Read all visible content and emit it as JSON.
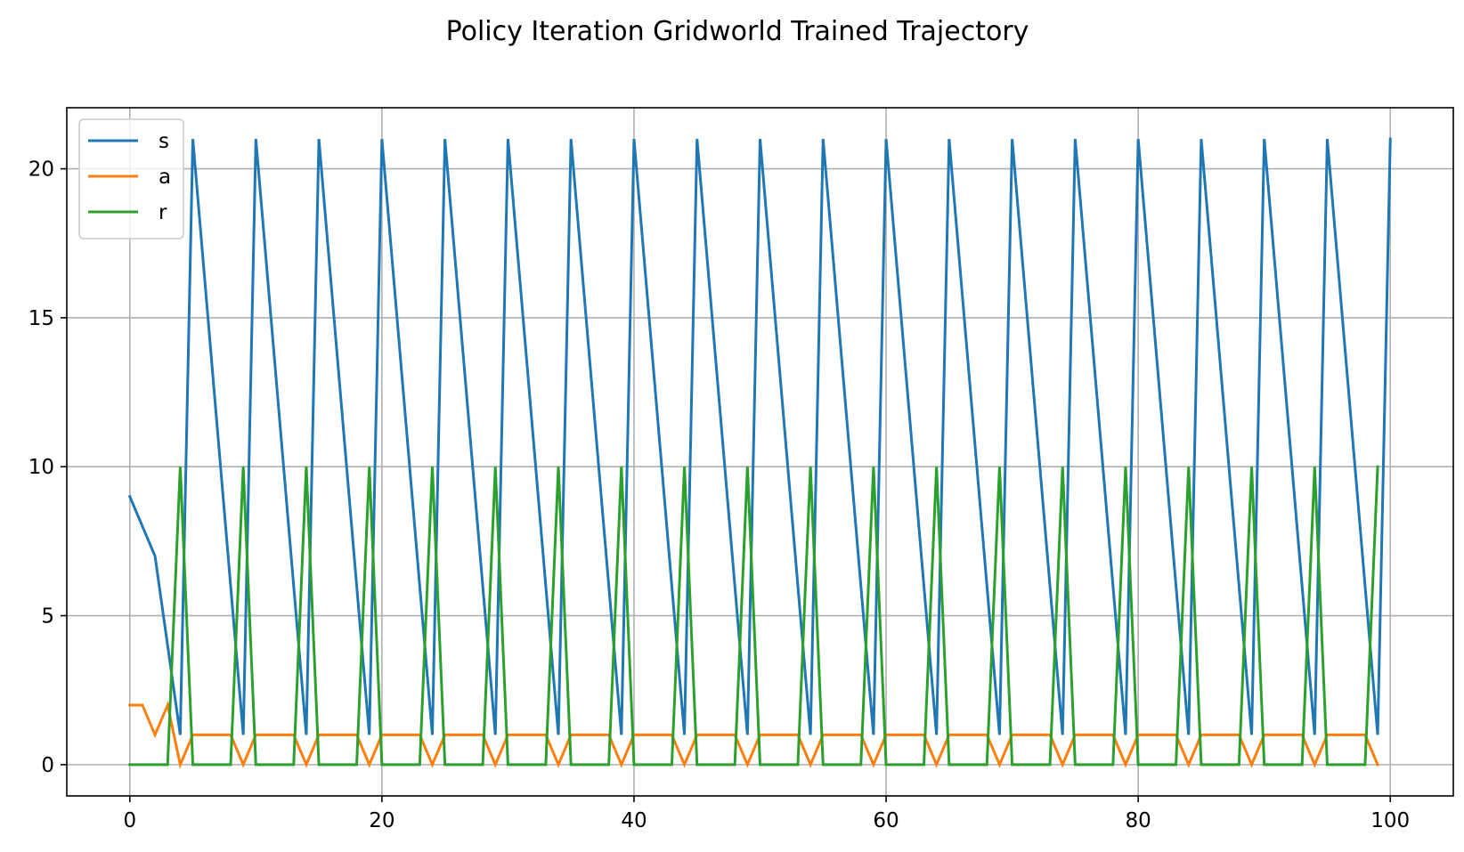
{
  "chart_data": {
    "type": "line",
    "title": "Policy Iteration Gridworld Trained Trajectory",
    "xlabel": "",
    "ylabel": "",
    "xlim": [
      -5,
      105
    ],
    "ylim": [
      -1.05,
      22.05
    ],
    "xticks": [
      0,
      20,
      40,
      60,
      80,
      100
    ],
    "yticks": [
      0,
      5,
      10,
      15,
      20
    ],
    "grid": true,
    "legend_position": "upper-left",
    "series": [
      {
        "name": "s",
        "color": "#1f77b4",
        "x": [
          0,
          2,
          4,
          5,
          9,
          10,
          14,
          15,
          19,
          20,
          24,
          25,
          29,
          30,
          34,
          35,
          39,
          40,
          44,
          45,
          49,
          50,
          54,
          55,
          59,
          60,
          64,
          65,
          69,
          70,
          74,
          75,
          79,
          80,
          84,
          85,
          89,
          90,
          94,
          95,
          99,
          100
        ],
        "y": [
          9,
          7,
          1,
          21,
          1,
          21,
          1,
          21,
          1,
          21,
          1,
          21,
          1,
          21,
          1,
          21,
          1,
          21,
          1,
          21,
          1,
          21,
          1,
          21,
          1,
          21,
          1,
          21,
          1,
          21,
          1,
          21,
          1,
          21,
          1,
          21,
          1,
          21,
          1,
          21,
          1,
          21
        ]
      },
      {
        "name": "a",
        "color": "#ff7f0e",
        "x": [
          0,
          1,
          2,
          3,
          4,
          5,
          8,
          9,
          10,
          13,
          14,
          15,
          18,
          19,
          20,
          23,
          24,
          25,
          28,
          29,
          30,
          33,
          34,
          35,
          38,
          39,
          40,
          43,
          44,
          45,
          48,
          49,
          50,
          53,
          54,
          55,
          58,
          59,
          60,
          63,
          64,
          65,
          68,
          69,
          70,
          73,
          74,
          75,
          78,
          79,
          80,
          83,
          84,
          85,
          88,
          89,
          90,
          93,
          94,
          95,
          98,
          99
        ],
        "y": [
          2,
          2,
          1,
          2,
          0,
          1,
          1,
          0,
          1,
          1,
          0,
          1,
          1,
          0,
          1,
          1,
          0,
          1,
          1,
          0,
          1,
          1,
          0,
          1,
          1,
          0,
          1,
          1,
          0,
          1,
          1,
          0,
          1,
          1,
          0,
          1,
          1,
          0,
          1,
          1,
          0,
          1,
          1,
          0,
          1,
          1,
          0,
          1,
          1,
          0,
          1,
          1,
          0,
          1,
          1,
          0,
          1,
          1,
          0,
          1,
          1,
          0
        ]
      },
      {
        "name": "r",
        "color": "#2ca02c",
        "x": [
          0,
          3,
          4,
          5,
          8,
          9,
          10,
          13,
          14,
          15,
          18,
          19,
          20,
          23,
          24,
          25,
          28,
          29,
          30,
          33,
          34,
          35,
          38,
          39,
          40,
          43,
          44,
          45,
          48,
          49,
          50,
          53,
          54,
          55,
          58,
          59,
          60,
          63,
          64,
          65,
          68,
          69,
          70,
          73,
          74,
          75,
          78,
          79,
          80,
          83,
          84,
          85,
          88,
          89,
          90,
          93,
          94,
          95,
          98,
          99
        ],
        "y": [
          0,
          0,
          10,
          0,
          0,
          10,
          0,
          0,
          10,
          0,
          0,
          10,
          0,
          0,
          10,
          0,
          0,
          10,
          0,
          0,
          10,
          0,
          0,
          10,
          0,
          0,
          10,
          0,
          0,
          10,
          0,
          0,
          10,
          0,
          0,
          10,
          0,
          0,
          10,
          0,
          0,
          10,
          0,
          0,
          10,
          0,
          0,
          10,
          0,
          0,
          10,
          0,
          0,
          10,
          0,
          0,
          10,
          0,
          0,
          10
        ]
      }
    ]
  }
}
